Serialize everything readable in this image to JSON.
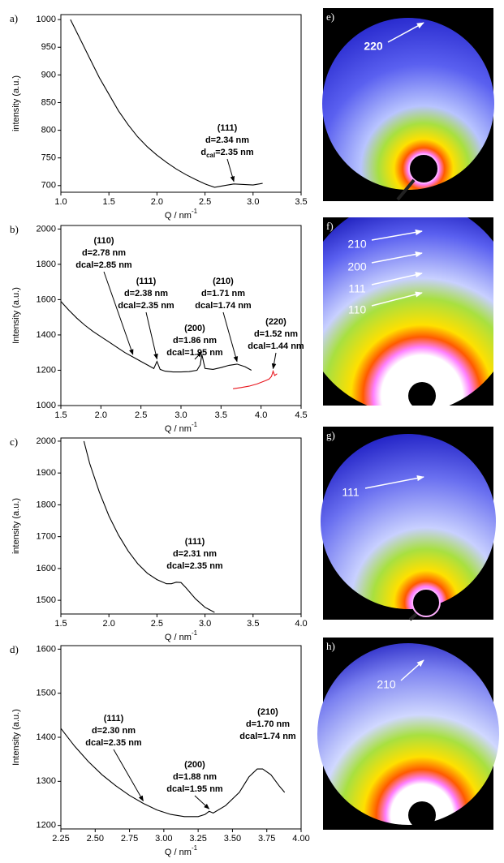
{
  "chart_data": [
    {
      "type": "line",
      "panel": "a)",
      "y_label": "intensity (a.u.)",
      "x_label": "Q / nm",
      "x_label_sup": "-1",
      "xlim": [
        1.0,
        3.5
      ],
      "ylim": [
        688,
        1009
      ],
      "xticks": [
        {
          "value": 1,
          "label": "1.0"
        },
        1.5,
        {
          "value": 2,
          "label": "2.0"
        },
        2.5,
        {
          "value": 3,
          "label": "3.0"
        },
        3.5
      ],
      "yticks": [
        700,
        750,
        800,
        850,
        900,
        950,
        1000
      ],
      "series": [
        {
          "color": "#000000",
          "x": [
            1.1,
            1.2,
            1.3,
            1.4,
            1.5,
            1.6,
            1.7,
            1.8,
            1.9,
            2.0,
            2.1,
            2.2,
            2.3,
            2.4,
            2.5,
            2.6,
            2.7,
            2.8,
            2.9,
            3.0,
            3.1
          ],
          "y": [
            1000,
            965,
            930,
            895,
            865,
            835,
            810,
            788,
            770,
            755,
            742,
            730,
            720,
            711,
            703,
            697,
            700,
            703,
            702,
            701,
            704
          ]
        }
      ],
      "annotations": [
        {
          "lines": [
            "(111)",
            "d=2.34 nm",
            [
              "d",
              "cal",
              "=2.35 nm"
            ]
          ]
        }
      ]
    },
    {
      "type": "line",
      "panel": "b)",
      "y_label": "Intensity (a.u.)",
      "x_label": "Q / nm",
      "x_label_sup": "-1",
      "xlim": [
        1.5,
        4.5
      ],
      "ylim": [
        1000,
        2020
      ],
      "xticks": [
        1.5,
        {
          "value": 2,
          "label": "2.0"
        },
        2.5,
        {
          "value": 3,
          "label": "3.0"
        },
        3.5,
        {
          "value": 4,
          "label": "4.0"
        },
        4.5
      ],
      "yticks": [
        1000,
        1200,
        1400,
        1600,
        1800,
        2000
      ],
      "series": [
        {
          "color": "#000000",
          "x": [
            1.5,
            1.6,
            1.7,
            1.8,
            1.9,
            2.0,
            2.1,
            2.2,
            2.3,
            2.4,
            2.5,
            2.6,
            2.66,
            2.7,
            2.74,
            2.8,
            2.9,
            3.0,
            3.1,
            3.2,
            3.24,
            3.26,
            3.3,
            3.4,
            3.5,
            3.6,
            3.7,
            3.8,
            3.88
          ],
          "y": [
            1590,
            1540,
            1495,
            1455,
            1420,
            1390,
            1360,
            1330,
            1300,
            1275,
            1250,
            1225,
            1210,
            1250,
            1205,
            1195,
            1190,
            1190,
            1192,
            1200,
            1230,
            1290,
            1210,
            1205,
            1215,
            1228,
            1235,
            1220,
            1200
          ]
        },
        {
          "color": "#e8141c",
          "x": [
            3.65,
            3.75,
            3.85,
            3.95,
            4.05,
            4.1,
            4.13,
            4.15,
            4.17,
            4.2
          ],
          "y": [
            1095,
            1102,
            1110,
            1122,
            1140,
            1150,
            1165,
            1195,
            1170,
            1180
          ]
        }
      ],
      "annotations": [
        {
          "lines": [
            "(110)",
            "d=2.78 nm",
            "dcal=2.85 nm"
          ]
        },
        {
          "lines": [
            "(111)",
            "d=2.38 nm",
            "dcal=2.35 nm"
          ]
        },
        {
          "lines": [
            "(200)",
            "d=1.86 nm",
            "dcal=1.95 nm"
          ]
        },
        {
          "lines": [
            "(210)",
            "d=1.71 nm",
            "dcal=1.74 nm"
          ]
        },
        {
          "lines": [
            "(220)",
            "d=1.52 nm",
            "dcal=1.44 nm"
          ]
        }
      ]
    },
    {
      "type": "line",
      "panel": "c)",
      "y_label": "intensity (a.u.)",
      "x_label": "Q / nm",
      "x_label_sup": "-1",
      "xlim": [
        1.5,
        4.0
      ],
      "ylim": [
        1457,
        2010
      ],
      "xticks": [
        1.5,
        {
          "value": 2,
          "label": "2.0"
        },
        2.5,
        {
          "value": 3,
          "label": "3.0"
        },
        3.5,
        {
          "value": 4,
          "label": "4.0"
        }
      ],
      "yticks": [
        1500,
        1600,
        1700,
        1800,
        1900,
        2000
      ],
      "series": [
        {
          "color": "#000000",
          "x": [
            1.74,
            1.8,
            1.9,
            2.0,
            2.1,
            2.2,
            2.3,
            2.4,
            2.5,
            2.6,
            2.65,
            2.7,
            2.75,
            2.8,
            2.9,
            3.0,
            3.1
          ],
          "y": [
            2000,
            1930,
            1840,
            1765,
            1705,
            1655,
            1615,
            1585,
            1565,
            1552,
            1552,
            1557,
            1556,
            1540,
            1505,
            1478,
            1462
          ]
        }
      ],
      "annotations": [
        {
          "lines": [
            "(111)",
            "d=2.31 nm",
            "dcal=2.35 nm"
          ]
        }
      ]
    },
    {
      "type": "line",
      "panel": "d)",
      "y_label": "Intensity (a.u.)",
      "x_label": "Q / nm",
      "x_label_sup": "-1",
      "xlim": [
        2.25,
        4.0
      ],
      "ylim": [
        1192,
        1608
      ],
      "xticks": [
        2.25,
        {
          "value": 2.5,
          "label": "2.50"
        },
        2.75,
        {
          "value": 3,
          "label": "3.00"
        },
        3.25,
        {
          "value": 3.5,
          "label": "3.50"
        },
        3.75,
        {
          "value": 4,
          "label": "4.00"
        }
      ],
      "yticks": [
        1200,
        1300,
        1400,
        1500,
        1600
      ],
      "series": [
        {
          "color": "#000000",
          "x": [
            2.25,
            2.35,
            2.45,
            2.55,
            2.65,
            2.75,
            2.85,
            2.95,
            3.05,
            3.15,
            3.25,
            3.3,
            3.33,
            3.36,
            3.45,
            3.55,
            3.62,
            3.68,
            3.72,
            3.78,
            3.84,
            3.88
          ],
          "y": [
            1420,
            1380,
            1345,
            1315,
            1290,
            1268,
            1250,
            1235,
            1225,
            1220,
            1220,
            1225,
            1232,
            1228,
            1245,
            1275,
            1310,
            1328,
            1328,
            1315,
            1290,
            1275
          ]
        }
      ],
      "annotations": [
        {
          "lines": [
            "(111)",
            "d=2.30 nm",
            "dcal=2.35 nm"
          ]
        },
        {
          "lines": [
            "(200)",
            "d=1.88 nm",
            "dcal=1.95 nm"
          ]
        },
        {
          "lines": [
            "(210)",
            "d=1.70 nm",
            "dcal=1.74 nm"
          ]
        }
      ]
    }
  ],
  "images": [
    {
      "panel": "e)",
      "labels": [
        "220"
      ]
    },
    {
      "panel": "f)",
      "labels": [
        "210",
        "200",
        "111",
        "110"
      ]
    },
    {
      "panel": "g)",
      "labels": [
        "111"
      ]
    },
    {
      "panel": "h)",
      "labels": [
        "210"
      ]
    }
  ]
}
